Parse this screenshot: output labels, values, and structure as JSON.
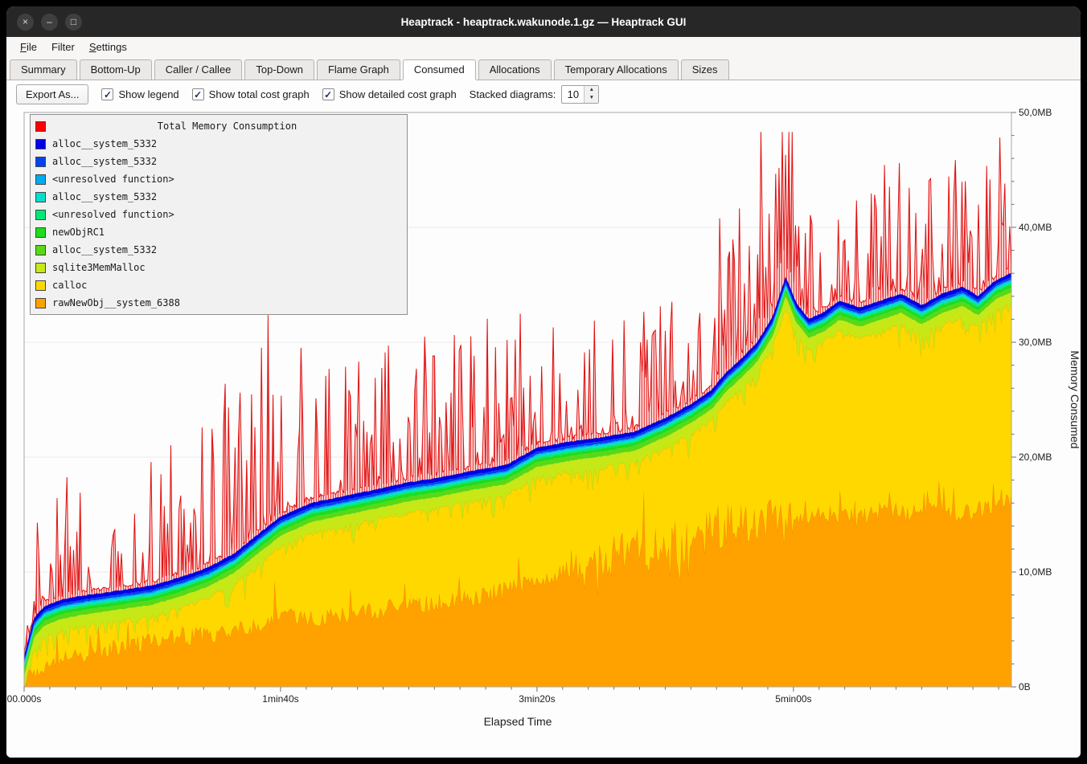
{
  "window": {
    "title": "Heaptrack - heaptrack.wakunode.1.gz — Heaptrack GUI",
    "controls": {
      "close": "×",
      "minimize": "–",
      "maximize": "□"
    }
  },
  "menubar": {
    "items": [
      {
        "label": "File",
        "accel_index": 0
      },
      {
        "label": "Filter",
        "accel_index": -1
      },
      {
        "label": "Settings",
        "accel_index": 0
      }
    ]
  },
  "tabs": {
    "items": [
      "Summary",
      "Bottom-Up",
      "Caller / Callee",
      "Top-Down",
      "Flame Graph",
      "Consumed",
      "Allocations",
      "Temporary Allocations",
      "Sizes"
    ],
    "active": "Consumed"
  },
  "toolbar": {
    "export_label": "Export As...",
    "checkboxes": [
      {
        "label": "Show legend",
        "checked": true
      },
      {
        "label": "Show total cost graph",
        "checked": true
      },
      {
        "label": "Show detailed cost graph",
        "checked": true
      }
    ],
    "stacked_label": "Stacked diagrams:",
    "stacked_value": "10"
  },
  "chart_data": {
    "type": "area",
    "title": "Total Memory Consumption",
    "xlabel": "Elapsed Time",
    "ylabel": "Memory Consumed",
    "x_range_s": [
      0,
      385
    ],
    "y_range_mb": [
      0,
      50
    ],
    "x_minor_step_s": 10,
    "y_minor_step_mb": 2,
    "x_ticks": [
      {
        "s": 0,
        "label": "00.000s"
      },
      {
        "s": 100,
        "label": "1min40s"
      },
      {
        "s": 200,
        "label": "3min20s"
      },
      {
        "s": 300,
        "label": "5min00s"
      }
    ],
    "y_ticks": [
      {
        "mb": 0,
        "label": "0B"
      },
      {
        "mb": 10,
        "label": "10,0MB"
      },
      {
        "mb": 20,
        "label": "20,0MB"
      },
      {
        "mb": 30,
        "label": "30,0MB"
      },
      {
        "mb": 40,
        "label": "40,0MB"
      },
      {
        "mb": 50,
        "label": "50,0MB"
      }
    ],
    "legend_title": {
      "label": "Total Memory Consumption",
      "color": "#ff0000"
    },
    "total": {
      "name": "Total Memory Consumption",
      "color": "#e01010",
      "baseline_offset_mb": 0.25,
      "spike_windows": [
        {
          "t0": 0,
          "t1": 12,
          "amp": 8,
          "prob": 0.5
        },
        {
          "t0": 12,
          "t1": 30,
          "amp": 11,
          "prob": 0.4
        },
        {
          "t0": 30,
          "t1": 52,
          "amp": 7,
          "prob": 0.38
        },
        {
          "t0": 52,
          "t1": 72,
          "amp": 12,
          "prob": 0.45
        },
        {
          "t0": 72,
          "t1": 95,
          "amp": 16,
          "prob": 0.5
        },
        {
          "t0": 95,
          "t1": 122,
          "amp": 15,
          "prob": 0.5
        },
        {
          "t0": 122,
          "t1": 158,
          "amp": 12,
          "prob": 0.42
        },
        {
          "t0": 158,
          "t1": 198,
          "amp": 13,
          "prob": 0.5
        },
        {
          "t0": 198,
          "t1": 242,
          "amp": 10,
          "prob": 0.48
        },
        {
          "t0": 242,
          "t1": 270,
          "amp": 10,
          "prob": 0.55
        },
        {
          "t0": 270,
          "t1": 302,
          "amp": 14,
          "prob": 0.88
        },
        {
          "t0": 302,
          "t1": 330,
          "amp": 9,
          "prob": 0.5
        },
        {
          "t0": 330,
          "t1": 386,
          "amp": 12,
          "prob": 0.62
        }
      ]
    },
    "series_bottom_up": [
      {
        "name": "rawNewObj__system_6388",
        "color": "#ffa200",
        "noise_mb": 0.8,
        "burst_mb": 3.0,
        "volatile_window": [
          215,
          300
        ],
        "volatile_extra_mb": 2.2,
        "trend": [
          [
            0,
            0.05
          ],
          [
            5,
            1.6
          ],
          [
            12,
            2.4
          ],
          [
            20,
            2.8
          ],
          [
            30,
            3.2
          ],
          [
            45,
            3.8
          ],
          [
            60,
            4.3
          ],
          [
            75,
            4.6
          ],
          [
            90,
            5.2
          ],
          [
            100,
            6.3
          ],
          [
            110,
            5.8
          ],
          [
            125,
            6.2
          ],
          [
            140,
            6.8
          ],
          [
            155,
            7.2
          ],
          [
            170,
            7.6
          ],
          [
            185,
            8.2
          ],
          [
            200,
            9.2
          ],
          [
            212,
            10.2
          ],
          [
            225,
            10.6
          ],
          [
            240,
            11.2
          ],
          [
            255,
            12.0
          ],
          [
            268,
            13.0
          ],
          [
            278,
            14.0
          ],
          [
            288,
            14.6
          ],
          [
            296,
            14.2
          ],
          [
            305,
            14.6
          ],
          [
            315,
            15.2
          ],
          [
            325,
            14.6
          ],
          [
            335,
            15.6
          ],
          [
            345,
            15.0
          ],
          [
            355,
            16.0
          ],
          [
            365,
            15.0
          ],
          [
            375,
            15.6
          ],
          [
            385,
            16.2
          ]
        ]
      },
      {
        "name": "calloc",
        "color": "#ffd800",
        "dip_mb": 2.6,
        "trend": [
          [
            0,
            0.2
          ],
          [
            4,
            3.6
          ],
          [
            8,
            4.6
          ],
          [
            15,
            5.2
          ],
          [
            25,
            5.6
          ],
          [
            35,
            5.9
          ],
          [
            50,
            6.4
          ],
          [
            62,
            7.2
          ],
          [
            72,
            8.0
          ],
          [
            82,
            9.2
          ],
          [
            92,
            11.0
          ],
          [
            100,
            12.4
          ],
          [
            112,
            13.6
          ],
          [
            125,
            14.2
          ],
          [
            138,
            14.8
          ],
          [
            150,
            15.4
          ],
          [
            162,
            15.8
          ],
          [
            175,
            16.4
          ],
          [
            188,
            16.9
          ],
          [
            200,
            18.4
          ],
          [
            212,
            18.9
          ],
          [
            225,
            19.3
          ],
          [
            238,
            19.8
          ],
          [
            250,
            21.0
          ],
          [
            260,
            22.2
          ],
          [
            268,
            23.4
          ],
          [
            274,
            25.0
          ],
          [
            280,
            26.2
          ],
          [
            286,
            27.6
          ],
          [
            292,
            29.8
          ],
          [
            297,
            33.2
          ],
          [
            301,
            31.0
          ],
          [
            306,
            29.6
          ],
          [
            312,
            30.2
          ],
          [
            318,
            31.2
          ],
          [
            326,
            30.6
          ],
          [
            334,
            31.2
          ],
          [
            342,
            31.8
          ],
          [
            350,
            30.8
          ],
          [
            358,
            31.8
          ],
          [
            366,
            32.4
          ],
          [
            372,
            31.6
          ],
          [
            379,
            33.0
          ],
          [
            385,
            33.6
          ]
        ]
      },
      {
        "name": "sqlite3MemMalloc",
        "color": "#c6e816",
        "offset_mb": 0.75
      },
      {
        "name": "alloc__system_5332",
        "color": "#58d816",
        "offset_mb": 0.4
      },
      {
        "name": "newObjRC1",
        "color": "#1edc1e",
        "offset_mb": 0.3
      },
      {
        "name": "<unresolved function>",
        "color": "#00e87a",
        "offset_mb": 0.15
      },
      {
        "name": "alloc__system_5332",
        "color": "#00e0cc",
        "offset_mb": 0.15
      },
      {
        "name": "<unresolved function>",
        "color": "#00aaee",
        "offset_mb": 0.12
      },
      {
        "name": "alloc__system_5332",
        "color": "#0044ee",
        "offset_mb": 0.2
      },
      {
        "name": "alloc__system_5332",
        "color": "#0000e8",
        "offset_mb": 0.3
      }
    ],
    "samples": 600,
    "seed": 77
  }
}
